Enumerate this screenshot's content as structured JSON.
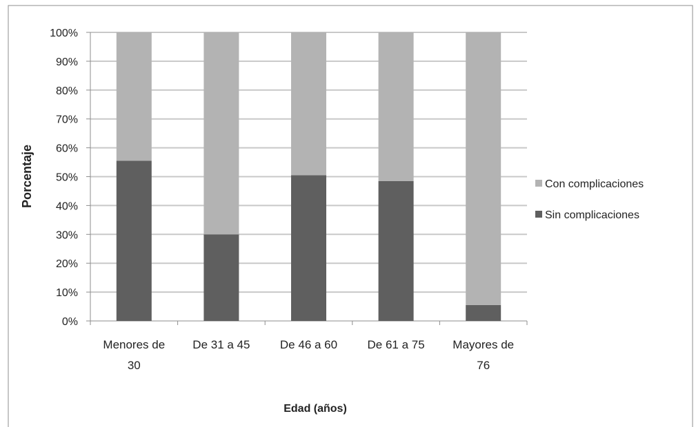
{
  "chart_data": {
    "type": "bar",
    "stacked": true,
    "percent_stacked": true,
    "title": "",
    "xlabel": "Edad (años)",
    "ylabel": "Porcentaje",
    "categories": [
      "Menores de 30",
      "De 31 a 45",
      "De 46 a 60",
      "De 61 a 75",
      "Mayores de 76"
    ],
    "category_label_lines": [
      [
        "Menores de",
        "30"
      ],
      [
        "De 31 a 45"
      ],
      [
        "De 46 a 60"
      ],
      [
        "De 61 a 75"
      ],
      [
        "Mayores de",
        "76"
      ]
    ],
    "series": [
      {
        "name": "Sin complicaciones",
        "values": [
          55.5,
          30,
          50.5,
          48.5,
          5.5
        ],
        "color": "#5f5f5f"
      },
      {
        "name": "Con complicaciones",
        "values": [
          44.5,
          70,
          49.5,
          51.5,
          94.5
        ],
        "color": "#b3b3b3"
      }
    ],
    "ylim": [
      0,
      100
    ],
    "yticks": [
      0,
      10,
      20,
      30,
      40,
      50,
      60,
      70,
      80,
      90,
      100
    ],
    "ytick_labels": [
      "0%",
      "10%",
      "20%",
      "30%",
      "40%",
      "50%",
      "60%",
      "70%",
      "80%",
      "90%",
      "100%"
    ],
    "legend_order": [
      "Con complicaciones",
      "Sin complicaciones"
    ],
    "legend_position": "right",
    "grid": true,
    "grid_color": "#c8c8c8"
  }
}
